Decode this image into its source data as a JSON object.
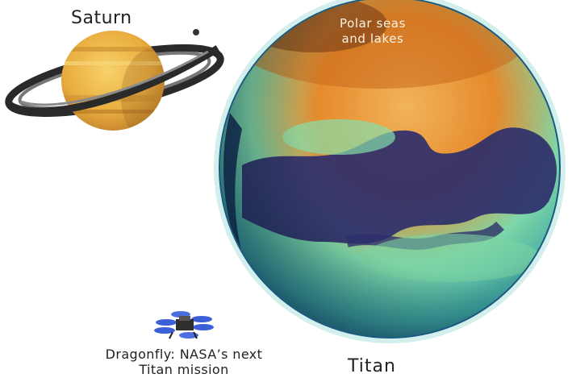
{
  "labels": {
    "saturn": "Saturn",
    "polar": [
      "Polar seas",
      "and lakes"
    ],
    "dragonfly": [
      "Dragonfly: NASA’s next",
      "Titan mission"
    ],
    "titan": "Titan"
  },
  "colors": {
    "background": "#ffffff",
    "saturn_body": "#e6a93a",
    "saturn_ring": "#2a2a2a",
    "titan_orange": "#e07a25",
    "titan_green": "#7fd7a8",
    "titan_sea": "#2e2f6b",
    "titan_rim": "#1d5f82",
    "label_text": "#222222",
    "polar_label_text": "#f7f3e6"
  },
  "icons": [
    "saturn-illustration",
    "titan-illustration",
    "dragonfly-drone-icon",
    "saturn-moon-dot"
  ]
}
